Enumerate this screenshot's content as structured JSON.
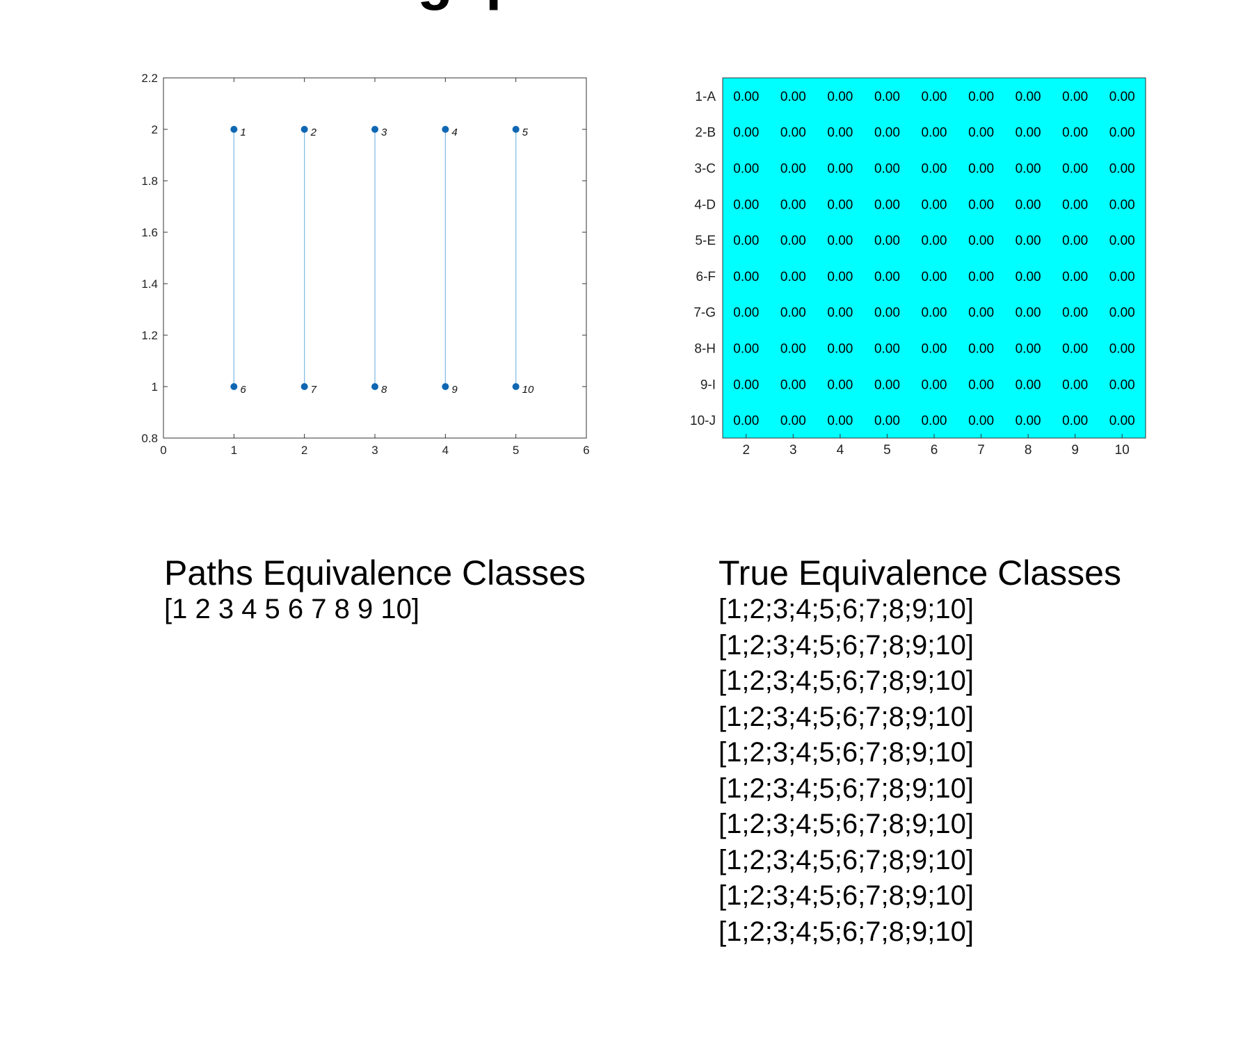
{
  "page_title_fragment": "g  p",
  "chart_data": [
    {
      "type": "scatter",
      "title": "",
      "xlabel": "",
      "ylabel": "",
      "xlim": [
        0,
        6
      ],
      "ylim": [
        0.8,
        2.2
      ],
      "x_ticks": [
        "0",
        "1",
        "2",
        "3",
        "4",
        "5",
        "6"
      ],
      "y_ticks": [
        "0.8",
        "1",
        "1.2",
        "1.4",
        "1.6",
        "1.8",
        "2",
        "2.2"
      ],
      "grid": false,
      "legend": "none",
      "points": [
        {
          "label": "1",
          "x": 1,
          "y": 2
        },
        {
          "label": "2",
          "x": 2,
          "y": 2
        },
        {
          "label": "3",
          "x": 3,
          "y": 2
        },
        {
          "label": "4",
          "x": 4,
          "y": 2
        },
        {
          "label": "5",
          "x": 5,
          "y": 2
        },
        {
          "label": "6",
          "x": 1,
          "y": 1
        },
        {
          "label": "7",
          "x": 2,
          "y": 1
        },
        {
          "label": "8",
          "x": 3,
          "y": 1
        },
        {
          "label": "9",
          "x": 4,
          "y": 1
        },
        {
          "label": "10",
          "x": 5,
          "y": 1
        }
      ],
      "edges": [
        [
          "1",
          "6"
        ],
        [
          "2",
          "7"
        ],
        [
          "3",
          "8"
        ],
        [
          "4",
          "9"
        ],
        [
          "5",
          "10"
        ]
      ],
      "colors": {
        "point": "#0f67b3",
        "edge": "#86bde6"
      }
    },
    {
      "type": "heatmap",
      "title": "",
      "row_labels": [
        "1-A",
        "2-B",
        "3-C",
        "4-D",
        "5-E",
        "6-F",
        "7-G",
        "8-H",
        "9-I",
        "10-J"
      ],
      "col_labels": [
        "2",
        "3",
        "4",
        "5",
        "6",
        "7",
        "8",
        "9",
        "10"
      ],
      "values": [
        [
          "0.00",
          "0.00",
          "0.00",
          "0.00",
          "0.00",
          "0.00",
          "0.00",
          "0.00",
          "0.00"
        ],
        [
          "0.00",
          "0.00",
          "0.00",
          "0.00",
          "0.00",
          "0.00",
          "0.00",
          "0.00",
          "0.00"
        ],
        [
          "0.00",
          "0.00",
          "0.00",
          "0.00",
          "0.00",
          "0.00",
          "0.00",
          "0.00",
          "0.00"
        ],
        [
          "0.00",
          "0.00",
          "0.00",
          "0.00",
          "0.00",
          "0.00",
          "0.00",
          "0.00",
          "0.00"
        ],
        [
          "0.00",
          "0.00",
          "0.00",
          "0.00",
          "0.00",
          "0.00",
          "0.00",
          "0.00",
          "0.00"
        ],
        [
          "0.00",
          "0.00",
          "0.00",
          "0.00",
          "0.00",
          "0.00",
          "0.00",
          "0.00",
          "0.00"
        ],
        [
          "0.00",
          "0.00",
          "0.00",
          "0.00",
          "0.00",
          "0.00",
          "0.00",
          "0.00",
          "0.00"
        ],
        [
          "0.00",
          "0.00",
          "0.00",
          "0.00",
          "0.00",
          "0.00",
          "0.00",
          "0.00",
          "0.00"
        ],
        [
          "0.00",
          "0.00",
          "0.00",
          "0.00",
          "0.00",
          "0.00",
          "0.00",
          "0.00",
          "0.00"
        ],
        [
          "0.00",
          "0.00",
          "0.00",
          "0.00",
          "0.00",
          "0.00",
          "0.00",
          "0.00",
          "0.00"
        ]
      ],
      "colors": {
        "cell": "#00ffff"
      }
    }
  ],
  "paths_classes": {
    "title": "Paths Equivalence Classes",
    "lines": [
      "[1 2 3 4 5 6 7 8 9 10]"
    ]
  },
  "true_classes": {
    "title": "True Equivalence Classes",
    "lines": [
      "[1;2;3;4;5;6;7;8;9;10]",
      "[1;2;3;4;5;6;7;8;9;10]",
      "[1;2;3;4;5;6;7;8;9;10]",
      "[1;2;3;4;5;6;7;8;9;10]",
      "[1;2;3;4;5;6;7;8;9;10]",
      "[1;2;3;4;5;6;7;8;9;10]",
      "[1;2;3;4;5;6;7;8;9;10]",
      "[1;2;3;4;5;6;7;8;9;10]",
      "[1;2;3;4;5;6;7;8;9;10]",
      "[1;2;3;4;5;6;7;8;9;10]"
    ]
  }
}
